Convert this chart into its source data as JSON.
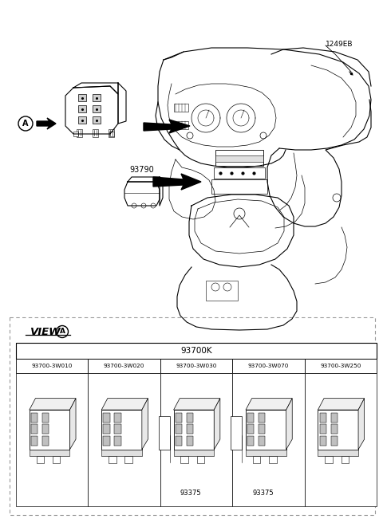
{
  "bg_color": "#ffffff",
  "fig_width": 4.8,
  "fig_height": 6.56,
  "dpi": 100,
  "label_1249EB": "1249EB",
  "label_93790": "93790",
  "label_A": "A",
  "label_view_A": "VIEW",
  "label_93700K": "93700K",
  "part_numbers": [
    "93700-3W010",
    "93700-3W020",
    "93700-3W030",
    "93700-3W070",
    "93700-3W250"
  ],
  "sub_labels": [
    "",
    "",
    "93375",
    "93375",
    ""
  ],
  "line_color": "#000000",
  "lw_main": 0.8,
  "lw_thin": 0.5
}
